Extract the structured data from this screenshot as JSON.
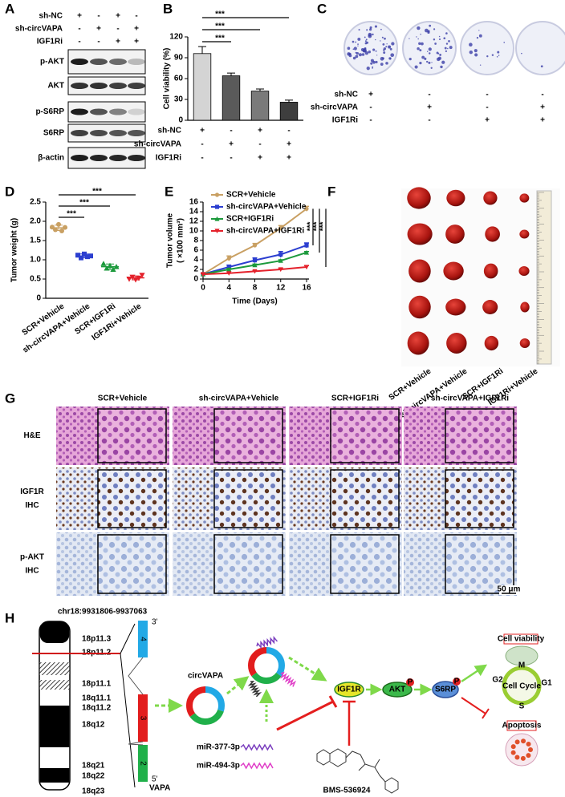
{
  "panel_a": {
    "label": "A",
    "conditions": [
      {
        "name": "sh-NC",
        "signs": [
          "+",
          "-",
          "+",
          "-"
        ]
      },
      {
        "name": "sh-circVAPA",
        "signs": [
          "-",
          "+",
          "-",
          "+"
        ]
      },
      {
        "name": "IGF1Ri",
        "signs": [
          "-",
          "-",
          "+",
          "+"
        ]
      }
    ],
    "blots": [
      "p-AKT",
      "AKT",
      "p-S6RP",
      "S6RP",
      "β-actin"
    ]
  },
  "chart_data": [
    {
      "label": "B",
      "type": "bar",
      "ylabel": "Cell viability (%)",
      "ylim": [
        0,
        120
      ],
      "yticks": [
        0,
        30,
        60,
        90,
        120
      ],
      "values": [
        96,
        64,
        42,
        26
      ],
      "errors": [
        10,
        4,
        3,
        3
      ],
      "colors": [
        "#d4d4d4",
        "#5a5a5a",
        "#7a7a7a",
        "#3e3e3e"
      ],
      "conditions": [
        {
          "name": "sh-NC",
          "signs": [
            "+",
            "-",
            "+",
            "-"
          ]
        },
        {
          "name": "sh-circVAPA",
          "signs": [
            "-",
            "+",
            "-",
            "+"
          ]
        },
        {
          "name": "IGF1Ri",
          "signs": [
            "-",
            "-",
            "+",
            "+"
          ]
        }
      ],
      "significance": [
        {
          "from": 0,
          "to": 1,
          "label": "***"
        },
        {
          "from": 0,
          "to": 2,
          "label": "***"
        },
        {
          "from": 0,
          "to": 3,
          "label": "***"
        }
      ]
    },
    {
      "label": "D",
      "type": "dot",
      "ylabel": "Tumor weight (g)",
      "ylim": [
        0,
        2.5
      ],
      "yticks": [
        0,
        0.5,
        {
          "value": 1,
          "label": "1.0"
        },
        1.5,
        {
          "value": 2,
          "label": "2.0"
        },
        2.5
      ],
      "series": [
        {
          "name": "SCR+Vehicle",
          "color": "#c9a063",
          "marker": "circle",
          "values": [
            1.85,
            1.78,
            1.92,
            1.75,
            1.84
          ],
          "mean": 1.83,
          "error": 0.07
        },
        {
          "name": "sh-circVAPA+Vehicle",
          "color": "#2c3fd0",
          "marker": "square",
          "values": [
            1.12,
            1.05,
            1.15,
            1.08,
            1.1
          ],
          "mean": 1.1,
          "error": 0.05
        },
        {
          "name": "SCR+IGF1Ri",
          "color": "#1c9a3c",
          "marker": "triangle",
          "values": [
            0.9,
            0.78,
            0.85,
            0.75,
            0.82
          ],
          "mean": 0.82,
          "error": 0.07
        },
        {
          "name": "IGF1Ri+Vehicle",
          "color": "#e4212b",
          "marker": "triangle-down",
          "values": [
            0.5,
            0.55,
            0.48,
            0.52,
            0.6
          ],
          "mean": 0.53,
          "error": 0.05
        }
      ],
      "significance": [
        {
          "from": 0,
          "to": 1,
          "label": "***"
        },
        {
          "from": 0,
          "to": 2,
          "label": "***"
        },
        {
          "from": 0,
          "to": 3,
          "label": "***"
        }
      ]
    },
    {
      "label": "E",
      "type": "line",
      "xlabel": "Time (Days)",
      "ylabel": [
        "Tumor volume",
        "( ×100 mm³)"
      ],
      "x": [
        0,
        4,
        8,
        12,
        16
      ],
      "xlim": [
        0,
        16
      ],
      "xticks": [
        0,
        4,
        8,
        12,
        16
      ],
      "ylim": [
        0,
        16
      ],
      "yticks": [
        0,
        2,
        4,
        6,
        8,
        10,
        12,
        14,
        16
      ],
      "series": [
        {
          "name": "SCR+Vehicle",
          "color": "#c9a063",
          "marker": "circle",
          "values": [
            1,
            4.3,
            7,
            10.6,
            14.6
          ],
          "errors": [
            0.2,
            0.5,
            0.4,
            0.5,
            0.5
          ]
        },
        {
          "name": "sh-circVAPA+Vehicle",
          "color": "#2c3fd0",
          "marker": "square",
          "values": [
            1,
            2.5,
            3.9,
            5.1,
            7
          ],
          "errors": [
            0.2,
            0.4,
            0.5,
            0.6,
            0.5
          ]
        },
        {
          "name": "SCR+IGF1Ri",
          "color": "#1c9a3c",
          "marker": "triangle",
          "values": [
            1,
            2,
            2.9,
            3.8,
            5.5
          ],
          "errors": [
            0.1,
            0.2,
            0.2,
            0.2,
            0.2
          ]
        },
        {
          "name": "sh-circVAPA+IGF1Ri",
          "color": "#e4212b",
          "marker": "triangle-down",
          "values": [
            1,
            1.2,
            1.6,
            2,
            2.5
          ],
          "errors": [
            0.1,
            0.1,
            0.1,
            0.2,
            0.3
          ]
        }
      ],
      "significance": [
        {
          "from": 0,
          "to": 1,
          "label": "***"
        },
        {
          "from": 0,
          "to": 2,
          "label": "***"
        },
        {
          "from": 0,
          "to": 3,
          "label": "***"
        }
      ]
    }
  ],
  "panel_c": {
    "label": "C",
    "conditions": [
      {
        "name": "sh-NC",
        "signs": [
          "+",
          "-",
          "-",
          "-"
        ]
      },
      {
        "name": "sh-circVAPA",
        "signs": [
          "-",
          "+",
          "-",
          "+"
        ]
      },
      {
        "name": "IGF1Ri",
        "signs": [
          "-",
          "-",
          "+",
          "+"
        ]
      }
    ]
  },
  "panel_f": {
    "label": "F",
    "groups": [
      "SCR+Vehicle",
      "sh-circVAPA+Vehicle",
      "SCR+IGF1Ri",
      "IGF1Ri+Vehicle"
    ]
  },
  "panel_g": {
    "label": "G",
    "columns": [
      "SCR+Vehicle",
      "sh-circVAPA+Vehicle",
      "SCR+IGF1Ri",
      "sh-circVAPA+IGF1Ri"
    ],
    "rows": [
      [
        "H&E"
      ],
      [
        "IGF1R",
        "IHC"
      ],
      [
        "p-AKT",
        "IHC"
      ]
    ],
    "scale_bar": "50 μm"
  },
  "panel_h": {
    "label": "H",
    "locus": "chr18:9931806-9937063",
    "bands": [
      "18p11.3",
      "18p11.2",
      "18p11.1",
      "18q11.1",
      "18q11.2",
      "18q12",
      "18q21",
      "18q22",
      "18q23"
    ],
    "gene": "VAPA",
    "exons": [
      "4",
      "3",
      "2"
    ],
    "ends": [
      "3'",
      "5'"
    ],
    "circrna": "circVAPA",
    "mirnas": [
      "miR-377-3p",
      "miR-494-3p"
    ],
    "inhibitor": "BMS-536924",
    "pathway": [
      "IGF1R",
      "AKT",
      "S6RP"
    ],
    "phospho": "P",
    "outcomes": {
      "viability": "Cell viability",
      "cycle": "Cell Cycle",
      "phases": [
        "M",
        "G2",
        "G1",
        "S"
      ],
      "apoptosis": "Apoptosis"
    }
  }
}
